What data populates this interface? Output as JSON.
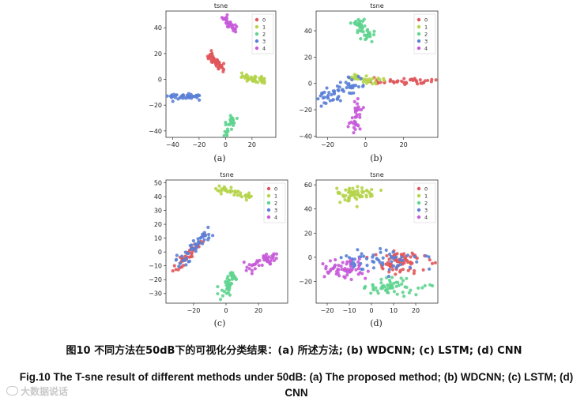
{
  "figure": {
    "legend_classes": [
      "0",
      "1",
      "2",
      "3",
      "4"
    ],
    "class_colors": [
      "#e0565b",
      "#b5d44a",
      "#5ed48f",
      "#5a7fd6",
      "#c75ad8"
    ],
    "caption_cn": "图10 不同方法在50dB下的可视化分类结果：(a) 所述方法; (b) WDCNN; (c) LSTM; (d) CNN",
    "caption_en": "Fig.10 The T-sne result of different methods under 50dB: (a) The proposed method; (b) WDCNN; (c) LSTM; (d) CNN",
    "watermark": "大数据说话"
  },
  "chart_data": [
    {
      "type": "scatter",
      "panel": "(a)",
      "title": "tsne",
      "xlim": [
        -45,
        38
      ],
      "ylim": [
        -45,
        53
      ],
      "xticks": [
        -40,
        -20,
        0,
        20
      ],
      "yticks": [
        -40,
        -20,
        0,
        20,
        40
      ],
      "clusters": [
        {
          "class": "0",
          "shape": "line",
          "from": [
            -12,
            19
          ],
          "to": [
            -3,
            9
          ],
          "spread": 1.6,
          "n": 50
        },
        {
          "class": "1",
          "shape": "line",
          "from": [
            14,
            2
          ],
          "to": [
            30,
            -1
          ],
          "spread": 1.5,
          "n": 45
        },
        {
          "class": "2",
          "shape": "line",
          "from": [
            0,
            -42
          ],
          "to": [
            7,
            -29
          ],
          "spread": 1.5,
          "n": 30
        },
        {
          "class": "3",
          "shape": "line",
          "from": [
            -42,
            -13
          ],
          "to": [
            -20,
            -13
          ],
          "spread": 1.2,
          "n": 40
        },
        {
          "class": "4",
          "shape": "line",
          "from": [
            -1,
            49
          ],
          "to": [
            7,
            38
          ],
          "spread": 1.4,
          "n": 35
        }
      ]
    },
    {
      "type": "scatter",
      "panel": "(b)",
      "title": "tsne",
      "xlim": [
        -26,
        38
      ],
      "ylim": [
        -41,
        55
      ],
      "xticks": [
        -20,
        0,
        20
      ],
      "yticks": [
        -40,
        -20,
        0,
        20,
        40
      ],
      "clusters": [
        {
          "class": "0",
          "shape": "line",
          "from": [
            3,
            1
          ],
          "to": [
            36,
            2
          ],
          "spread": 1.3,
          "n": 45
        },
        {
          "class": "1",
          "shape": "line",
          "from": [
            -10,
            5
          ],
          "to": [
            10,
            1
          ],
          "spread": 1.5,
          "n": 35
        },
        {
          "class": "2",
          "shape": "line",
          "from": [
            -6,
            48
          ],
          "to": [
            3,
            36
          ],
          "spread": 2.2,
          "n": 45
        },
        {
          "class": "3",
          "shape": "line",
          "from": [
            -23,
            -13
          ],
          "to": [
            -3,
            3
          ],
          "spread": 3.0,
          "n": 60
        },
        {
          "class": "4",
          "shape": "line",
          "from": [
            -6,
            -37
          ],
          "to": [
            -4,
            -15
          ],
          "spread": 1.6,
          "n": 35
        }
      ]
    },
    {
      "type": "scatter",
      "panel": "(c)",
      "title": "tsne",
      "xlim": [
        -37,
        38
      ],
      "ylim": [
        -37,
        52
      ],
      "xticks": [
        -20,
        0,
        20
      ],
      "yticks": [
        -30,
        -20,
        -10,
        0,
        10,
        20,
        30,
        40,
        50
      ],
      "clusters": [
        {
          "class": "0",
          "shape": "line",
          "from": [
            -33,
            -14
          ],
          "to": [
            -12,
            12
          ],
          "spread": 1.6,
          "n": 45
        },
        {
          "class": "1",
          "shape": "line",
          "from": [
            -5,
            47
          ],
          "to": [
            14,
            40
          ],
          "spread": 1.5,
          "n": 40
        },
        {
          "class": "2",
          "shape": "line",
          "from": [
            -3,
            -31
          ],
          "to": [
            5,
            -16
          ],
          "spread": 2.2,
          "n": 40
        },
        {
          "class": "3",
          "shape": "line",
          "from": [
            -30,
            -8
          ],
          "to": [
            -10,
            14
          ],
          "spread": 1.8,
          "n": 45
        },
        {
          "class": "4",
          "shape": "line",
          "from": [
            11,
            -12
          ],
          "to": [
            32,
            -3
          ],
          "spread": 1.8,
          "n": 45
        }
      ]
    },
    {
      "type": "scatter",
      "panel": "(d)",
      "title": "tsne",
      "xlim": [
        -25,
        30
      ],
      "ylim": [
        -38,
        64
      ],
      "xticks": [
        -20,
        -10,
        0,
        10,
        20
      ],
      "yticks": [
        -20,
        0,
        20,
        40,
        60
      ],
      "clusters": [
        {
          "class": "0",
          "shape": "blob",
          "center": [
            12,
            -5
          ],
          "radius": [
            11,
            9
          ],
          "n": 75
        },
        {
          "class": "1",
          "shape": "blob",
          "center": [
            -7,
            53
          ],
          "radius": [
            8,
            6
          ],
          "n": 60
        },
        {
          "class": "2",
          "shape": "blob",
          "center": [
            10,
            -25
          ],
          "radius": [
            12,
            6
          ],
          "n": 60
        },
        {
          "class": "3",
          "shape": "blob",
          "center": [
            2,
            -3
          ],
          "radius": [
            18,
            10
          ],
          "n": 65
        },
        {
          "class": "4",
          "shape": "blob",
          "center": [
            -12,
            -10
          ],
          "radius": [
            9,
            7
          ],
          "n": 55
        }
      ]
    }
  ]
}
